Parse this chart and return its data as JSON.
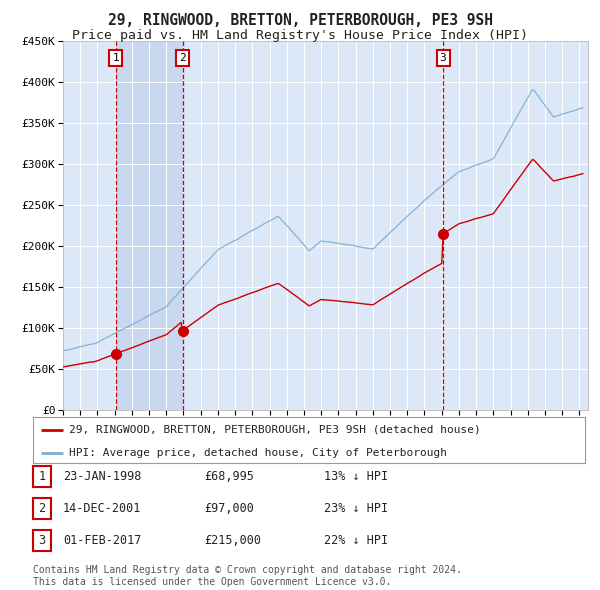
{
  "title": "29, RINGWOOD, BRETTON, PETERBOROUGH, PE3 9SH",
  "subtitle": "Price paid vs. HM Land Registry's House Price Index (HPI)",
  "ylim": [
    0,
    450000
  ],
  "yticks": [
    0,
    50000,
    100000,
    150000,
    200000,
    250000,
    300000,
    350000,
    400000,
    450000
  ],
  "ytick_labels": [
    "£0",
    "£50K",
    "£100K",
    "£150K",
    "£200K",
    "£250K",
    "£300K",
    "£350K",
    "£400K",
    "£450K"
  ],
  "background_color": "#ffffff",
  "plot_bg_color": "#dce8f8",
  "grid_color": "#ffffff",
  "sale_line_color": "#cc0000",
  "hpi_line_color": "#7aadd4",
  "sale_dot_color": "#cc0000",
  "vline_color": "#cc0000",
  "shade_color": "#c8d8ee",
  "transactions": [
    {
      "label": "1",
      "date_num": 1998.07,
      "price": 68995
    },
    {
      "label": "2",
      "date_num": 2001.95,
      "price": 97000
    },
    {
      "label": "3",
      "date_num": 2017.08,
      "price": 215000
    }
  ],
  "legend_entries": [
    {
      "label": "29, RINGWOOD, BRETTON, PETERBOROUGH, PE3 9SH (detached house)",
      "color": "#cc0000"
    },
    {
      "label": "HPI: Average price, detached house, City of Peterborough",
      "color": "#7aadd4"
    }
  ],
  "table_rows": [
    {
      "num": "1",
      "date": "23-JAN-1998",
      "price": "£68,995",
      "hpi": "13% ↓ HPI"
    },
    {
      "num": "2",
      "date": "14-DEC-2001",
      "price": "£97,000",
      "hpi": "23% ↓ HPI"
    },
    {
      "num": "3",
      "date": "01-FEB-2017",
      "price": "£215,000",
      "hpi": "22% ↓ HPI"
    }
  ],
  "footnote": "Contains HM Land Registry data © Crown copyright and database right 2024.\nThis data is licensed under the Open Government Licence v3.0.",
  "title_fontsize": 10.5,
  "subtitle_fontsize": 9.5,
  "tick_fontsize": 8,
  "legend_fontsize": 8,
  "table_fontsize": 8.5,
  "footnote_fontsize": 7
}
